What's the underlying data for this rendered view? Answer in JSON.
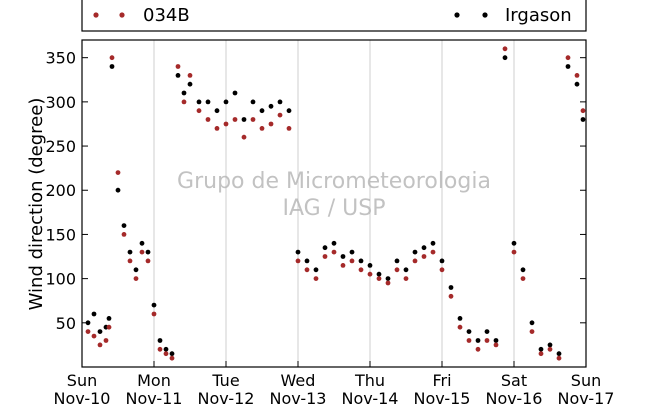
{
  "chart_data": {
    "type": "scatter",
    "title": "",
    "xlabel": "",
    "ylabel": "Wind direction (degree)",
    "xlim": [
      "2013-11-10",
      "2013-11-17"
    ],
    "ylim": [
      0,
      370
    ],
    "yticks": [
      50,
      100,
      150,
      200,
      250,
      300,
      350
    ],
    "xtick_days": [
      "Sun",
      "Mon",
      "Tue",
      "Wed",
      "Thu",
      "Fri",
      "Sat",
      "Sun"
    ],
    "xtick_dates": [
      "Nov-10",
      "Nov-11",
      "Nov-12",
      "Nov-13",
      "Nov-14",
      "Nov-15",
      "Nov-16",
      "Nov-17"
    ],
    "grid": "vertical at day boundaries",
    "legend_placement": "top, above the plot",
    "watermark": [
      "Grupo de Micrometeorologia",
      "IAG / USP"
    ],
    "series": [
      {
        "name": "034B",
        "color": "#a52a2a",
        "x": [
          "11-10 02:00",
          "11-10 04:00",
          "11-10 06:00",
          "11-10 08:00",
          "11-10 09:00",
          "11-10 10:00",
          "11-10 12:00",
          "11-10 14:00",
          "11-10 16:00",
          "11-10 18:00",
          "11-10 20:00",
          "11-10 22:00",
          "11-11 00:00",
          "11-11 02:00",
          "11-11 04:00",
          "11-11 06:00",
          "11-11 08:00",
          "11-11 10:00",
          "11-11 12:00",
          "11-11 15:00",
          "11-11 18:00",
          "11-11 21:00",
          "11-12 00:00",
          "11-12 03:00",
          "11-12 06:00",
          "11-12 09:00",
          "11-12 12:00",
          "11-12 15:00",
          "11-12 18:00",
          "11-12 21:00",
          "11-13 00:00",
          "11-13 03:00",
          "11-13 06:00",
          "11-13 09:00",
          "11-13 12:00",
          "11-13 15:00",
          "11-13 18:00",
          "11-13 21:00",
          "11-14 00:00",
          "11-14 03:00",
          "11-14 06:00",
          "11-14 09:00",
          "11-14 12:00",
          "11-14 15:00",
          "11-14 18:00",
          "11-14 21:00",
          "11-15 00:00",
          "11-15 03:00",
          "11-15 06:00",
          "11-15 09:00",
          "11-15 12:00",
          "11-15 15:00",
          "11-15 18:00",
          "11-15 21:00",
          "11-16 00:00",
          "11-16 03:00",
          "11-16 06:00",
          "11-16 09:00",
          "11-16 12:00",
          "11-16 15:00",
          "11-16 18:00",
          "11-16 21:00",
          "11-16 23:00"
        ],
        "y": [
          40,
          35,
          25,
          30,
          45,
          350,
          220,
          150,
          120,
          100,
          130,
          120,
          60,
          20,
          15,
          10,
          340,
          300,
          330,
          290,
          280,
          270,
          275,
          280,
          260,
          280,
          270,
          275,
          285,
          270,
          120,
          110,
          100,
          125,
          130,
          115,
          120,
          110,
          105,
          100,
          95,
          110,
          100,
          120,
          125,
          130,
          110,
          80,
          45,
          30,
          20,
          30,
          25,
          360,
          130,
          100,
          40,
          15,
          20,
          10,
          350,
          330,
          290
        ]
      },
      {
        "name": "Irgason",
        "color": "#000000",
        "x": [
          "11-10 02:00",
          "11-10 04:00",
          "11-10 06:00",
          "11-10 08:00",
          "11-10 09:00",
          "11-10 10:00",
          "11-10 12:00",
          "11-10 14:00",
          "11-10 16:00",
          "11-10 18:00",
          "11-10 20:00",
          "11-10 22:00",
          "11-11 00:00",
          "11-11 02:00",
          "11-11 04:00",
          "11-11 06:00",
          "11-11 08:00",
          "11-11 10:00",
          "11-11 12:00",
          "11-11 15:00",
          "11-11 18:00",
          "11-11 21:00",
          "11-12 00:00",
          "11-12 03:00",
          "11-12 06:00",
          "11-12 09:00",
          "11-12 12:00",
          "11-12 15:00",
          "11-12 18:00",
          "11-12 21:00",
          "11-13 00:00",
          "11-13 03:00",
          "11-13 06:00",
          "11-13 09:00",
          "11-13 12:00",
          "11-13 15:00",
          "11-13 18:00",
          "11-13 21:00",
          "11-14 00:00",
          "11-14 03:00",
          "11-14 06:00",
          "11-14 09:00",
          "11-14 12:00",
          "11-14 15:00",
          "11-14 18:00",
          "11-14 21:00",
          "11-15 00:00",
          "11-15 03:00",
          "11-15 06:00",
          "11-15 09:00",
          "11-15 12:00",
          "11-15 15:00",
          "11-15 18:00",
          "11-15 21:00",
          "11-16 00:00",
          "11-16 03:00",
          "11-16 06:00",
          "11-16 09:00",
          "11-16 12:00",
          "11-16 15:00",
          "11-16 18:00",
          "11-16 21:00",
          "11-16 23:00"
        ],
        "y": [
          50,
          60,
          40,
          45,
          55,
          340,
          200,
          160,
          130,
          110,
          140,
          130,
          70,
          30,
          20,
          15,
          330,
          310,
          320,
          300,
          300,
          290,
          300,
          310,
          280,
          300,
          290,
          295,
          300,
          290,
          130,
          120,
          110,
          135,
          140,
          125,
          130,
          120,
          115,
          105,
          100,
          120,
          110,
          130,
          135,
          140,
          120,
          90,
          55,
          40,
          30,
          40,
          30,
          350,
          140,
          110,
          50,
          20,
          25,
          15,
          340,
          320,
          280
        ]
      }
    ]
  }
}
